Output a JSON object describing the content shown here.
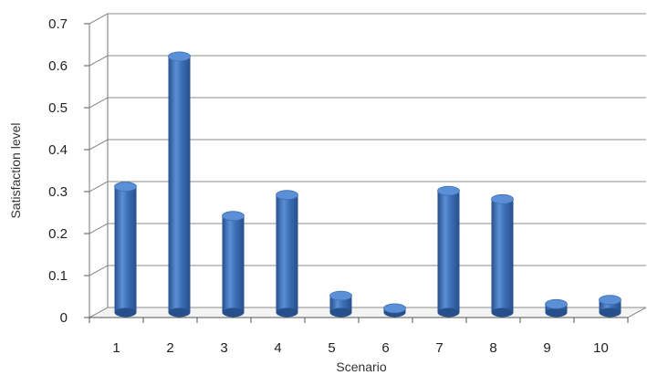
{
  "chart_data": {
    "type": "bar",
    "title": "",
    "xlabel": "Scenario",
    "ylabel": "Satisfaction level",
    "categories": [
      "1",
      "2",
      "3",
      "4",
      "5",
      "6",
      "7",
      "8",
      "9",
      "10"
    ],
    "values": [
      0.3,
      0.61,
      0.23,
      0.28,
      0.04,
      0.01,
      0.29,
      0.27,
      0.02,
      0.03
    ],
    "ylim": [
      0,
      0.7
    ],
    "yticks": [
      "0",
      "0.1",
      "0.2",
      "0.3",
      "0.4",
      "0.5",
      "0.6",
      "0.7"
    ],
    "grid": true,
    "style": "3d-cylinder",
    "colors": {
      "bar_side": "#3c6fb6",
      "bar_top": "#5b8fd6",
      "bar_dark": "#274f8c",
      "grid": "#8c8c8c"
    }
  }
}
